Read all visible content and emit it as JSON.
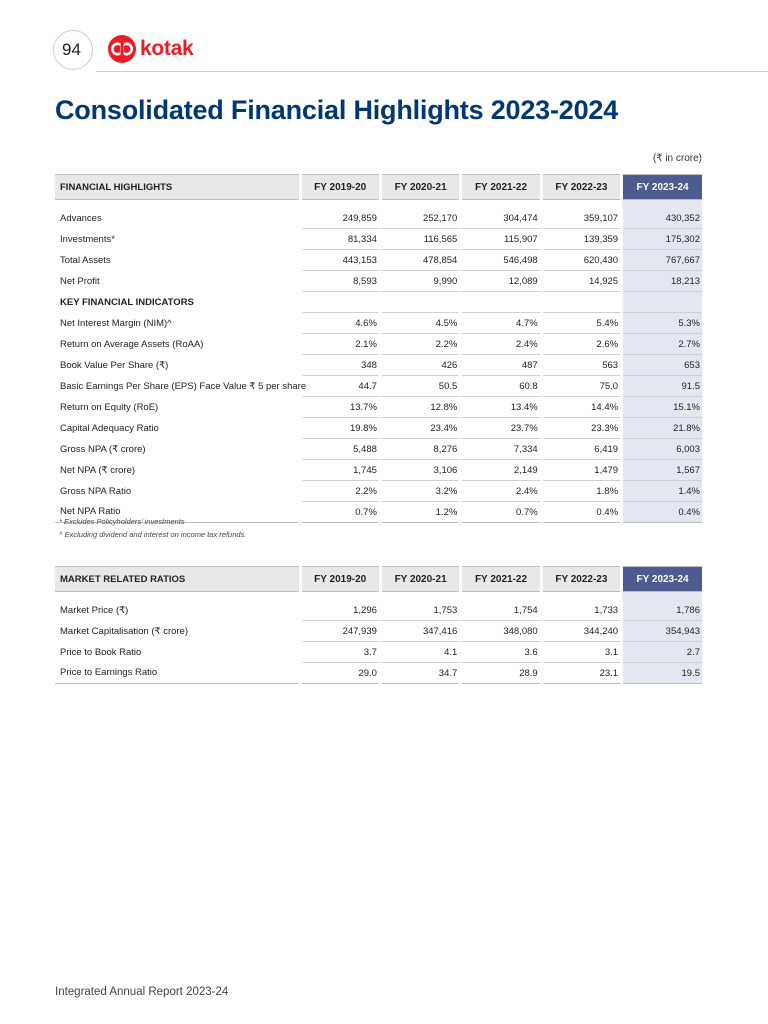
{
  "header": {
    "page_number": "94",
    "logo_text": "kotak"
  },
  "title": "Consolidated Financial Highlights 2023-2024",
  "unit": "(₹ in crore)",
  "years": [
    "FY 2019-20",
    "FY 2020-21",
    "FY 2021-22",
    "FY 2022-23",
    "FY 2023-24"
  ],
  "financial_highlights": {
    "heading": "FINANCIAL HIGHLIGHTS",
    "rows": [
      {
        "label": "Advances",
        "values": [
          "249,859",
          "252,170",
          "304,474",
          "359,107",
          "430,352"
        ]
      },
      {
        "label": "Investments*",
        "values": [
          "81,334",
          "116,565",
          "115,907",
          "139,359",
          "175,302"
        ]
      },
      {
        "label": "Total Assets",
        "values": [
          "443,153",
          "478,854",
          "546,498",
          "620,430",
          "767,667"
        ]
      },
      {
        "label": "Net Profit",
        "values": [
          "8,593",
          "9,990",
          "12,089",
          "14,925",
          "18,213"
        ]
      }
    ],
    "section_label": "KEY FINANCIAL INDICATORS",
    "indicators": [
      {
        "label": "Net Interest Margin (NIM)^",
        "values": [
          "4.6%",
          "4.5%",
          "4.7%",
          "5.4%",
          "5.3%"
        ]
      },
      {
        "label": "Return on Average Assets (RoAA)",
        "values": [
          "2.1%",
          "2.2%",
          "2.4%",
          "2.6%",
          "2.7%"
        ]
      },
      {
        "label": "Book Value Per Share (₹)",
        "values": [
          "348",
          "426",
          "487",
          "563",
          "653"
        ]
      },
      {
        "label": "Basic Earnings Per Share (EPS) Face Value ₹ 5 per share",
        "values": [
          "44.7",
          "50.5",
          "60.8",
          "75.0",
          "91.5"
        ]
      },
      {
        "label": "Return on Equity (RoE)",
        "values": [
          "13.7%",
          "12.8%",
          "13.4%",
          "14.4%",
          "15.1%"
        ]
      },
      {
        "label": "Capital Adequacy Ratio",
        "values": [
          "19.8%",
          "23.4%",
          "23.7%",
          "23.3%",
          "21.8%"
        ]
      },
      {
        "label": "Gross NPA (₹ crore)",
        "values": [
          "5,488",
          "8,276",
          "7,334",
          "6,419",
          "6,003"
        ]
      },
      {
        "label": "Net NPA (₹ crore)",
        "values": [
          "1,745",
          "3,106",
          "2,149",
          "1,479",
          "1,567"
        ]
      },
      {
        "label": "Gross NPA Ratio",
        "values": [
          "2.2%",
          "3.2%",
          "2.4%",
          "1.8%",
          "1.4%"
        ]
      },
      {
        "label": "Net NPA Ratio",
        "values": [
          "0.7%",
          "1.2%",
          "0.7%",
          "0.4%",
          "0.4%"
        ]
      }
    ]
  },
  "notes": [
    "* Excludes Policyholders' investments",
    "^ Excluding dividend and interest on income tax refunds."
  ],
  "market_ratios": {
    "heading": "MARKET RELATED RATIOS",
    "rows": [
      {
        "label": "Market Price (₹)",
        "values": [
          "1,296",
          "1,753",
          "1,754",
          "1,733",
          "1,786"
        ]
      },
      {
        "label": "Market Capitalisation (₹ crore)",
        "values": [
          "247,939",
          "347,416",
          "348,080",
          "344,240",
          "354,943"
        ]
      },
      {
        "label": "Price to Book Ratio",
        "values": [
          "3.7",
          "4.1",
          "3.6",
          "3.1",
          "2.7"
        ]
      },
      {
        "label": "Price to Earnings Ratio",
        "values": [
          "29.0",
          "34.7",
          "28.9",
          "23.1",
          "19.5"
        ]
      }
    ]
  },
  "footer": "Integrated Annual Report 2023-24",
  "colors": {
    "title": "#003874",
    "highlight_header": "#4d5b8f",
    "highlight_cell": "#e4e7f1",
    "logo": "#ed1c24"
  }
}
